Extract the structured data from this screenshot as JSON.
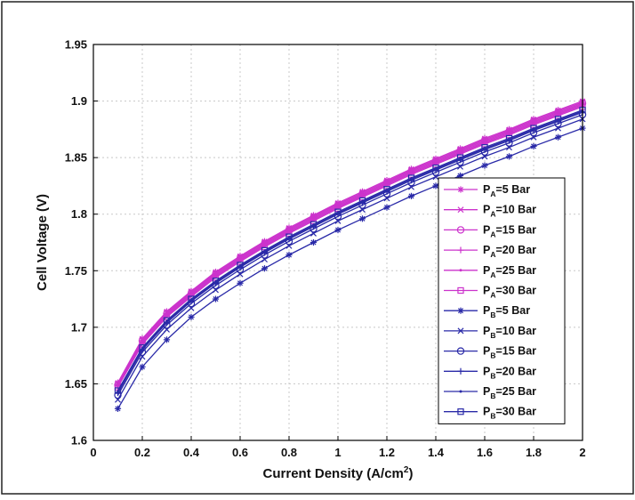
{
  "chart_data": {
    "type": "line",
    "xlabel": "Current Density (A/cm",
    "xlabel_sup": "2",
    "xlabel_tail": ")",
    "ylabel": "Cell Voltage (V)",
    "xlim": [
      0,
      2
    ],
    "ylim": [
      1.6,
      1.95
    ],
    "xticks": [
      0,
      0.2,
      0.4,
      0.6,
      0.8,
      1,
      1.2,
      1.4,
      1.6,
      1.8,
      2
    ],
    "xtick_labels": [
      "0",
      "0.2",
      "0.4",
      "0.6",
      "0.8",
      "1",
      "1.2",
      "1.4",
      "1.6",
      "1.8",
      "2"
    ],
    "yticks": [
      1.6,
      1.65,
      1.7,
      1.75,
      1.8,
      1.85,
      1.9,
      1.95
    ],
    "ytick_labels": [
      "1.6",
      "1.65",
      "1.7",
      "1.75",
      "1.8",
      "1.85",
      "1.9",
      "1.95"
    ],
    "grid": true,
    "legend_position": "right",
    "x": [
      0.1,
      0.2,
      0.3,
      0.4,
      0.5,
      0.6,
      0.7,
      0.8,
      0.9,
      1.0,
      1.1,
      1.2,
      1.3,
      1.4,
      1.5,
      1.6,
      1.7,
      1.8,
      1.9,
      2.0
    ],
    "series": [
      {
        "label_main": "P",
        "label_sub": "A",
        "label_tail": "=5 Bar",
        "color": "#cc33cc",
        "marker": "asterisk",
        "values": [
          1.651,
          1.69,
          1.714,
          1.732,
          1.749,
          1.763,
          1.776,
          1.788,
          1.799,
          1.81,
          1.82,
          1.83,
          1.84,
          1.849,
          1.858,
          1.867,
          1.875,
          1.884,
          1.892,
          1.9
        ]
      },
      {
        "label_main": "P",
        "label_sub": "A",
        "label_tail": "=10 Bar",
        "color": "#cc33cc",
        "marker": "x",
        "values": [
          1.65,
          1.689,
          1.713,
          1.731,
          1.748,
          1.762,
          1.775,
          1.787,
          1.798,
          1.809,
          1.819,
          1.829,
          1.839,
          1.848,
          1.857,
          1.866,
          1.874,
          1.883,
          1.891,
          1.899
        ]
      },
      {
        "label_main": "P",
        "label_sub": "A",
        "label_tail": "=15 Bar",
        "color": "#cc33cc",
        "marker": "circle",
        "values": [
          1.649,
          1.688,
          1.712,
          1.73,
          1.747,
          1.761,
          1.774,
          1.786,
          1.797,
          1.808,
          1.818,
          1.828,
          1.838,
          1.847,
          1.856,
          1.865,
          1.873,
          1.882,
          1.89,
          1.898
        ]
      },
      {
        "label_main": "P",
        "label_sub": "A",
        "label_tail": "=20 Bar",
        "color": "#cc33cc",
        "marker": "plus",
        "values": [
          1.648,
          1.687,
          1.711,
          1.729,
          1.746,
          1.76,
          1.773,
          1.785,
          1.796,
          1.807,
          1.817,
          1.827,
          1.837,
          1.846,
          1.855,
          1.864,
          1.872,
          1.881,
          1.889,
          1.897
        ]
      },
      {
        "label_main": "P",
        "label_sub": "A",
        "label_tail": "=25 Bar",
        "color": "#cc33cc",
        "marker": "dot",
        "values": [
          1.648,
          1.686,
          1.71,
          1.728,
          1.745,
          1.759,
          1.772,
          1.784,
          1.795,
          1.806,
          1.816,
          1.826,
          1.836,
          1.845,
          1.854,
          1.863,
          1.871,
          1.88,
          1.888,
          1.896
        ]
      },
      {
        "label_main": "P",
        "label_sub": "A",
        "label_tail": "=30 Bar",
        "color": "#cc33cc",
        "marker": "square",
        "values": [
          1.647,
          1.685,
          1.709,
          1.727,
          1.744,
          1.758,
          1.771,
          1.783,
          1.794,
          1.805,
          1.815,
          1.825,
          1.835,
          1.844,
          1.853,
          1.862,
          1.87,
          1.879,
          1.887,
          1.895
        ]
      },
      {
        "label_main": "P",
        "label_sub": "B",
        "label_tail": "=5 Bar",
        "color": "#2a2aa8",
        "marker": "asterisk",
        "values": [
          1.628,
          1.665,
          1.689,
          1.709,
          1.725,
          1.739,
          1.752,
          1.764,
          1.775,
          1.786,
          1.796,
          1.806,
          1.816,
          1.825,
          1.834,
          1.843,
          1.851,
          1.86,
          1.868,
          1.876
        ]
      },
      {
        "label_main": "P",
        "label_sub": "B",
        "label_tail": "=10 Bar",
        "color": "#2a2aa8",
        "marker": "x",
        "values": [
          1.636,
          1.674,
          1.698,
          1.717,
          1.733,
          1.747,
          1.76,
          1.772,
          1.783,
          1.794,
          1.804,
          1.814,
          1.824,
          1.833,
          1.842,
          1.851,
          1.859,
          1.868,
          1.876,
          1.884
        ]
      },
      {
        "label_main": "P",
        "label_sub": "B",
        "label_tail": "=15 Bar",
        "color": "#2a2aa8",
        "marker": "circle",
        "values": [
          1.64,
          1.678,
          1.702,
          1.721,
          1.737,
          1.751,
          1.764,
          1.776,
          1.787,
          1.798,
          1.808,
          1.818,
          1.828,
          1.837,
          1.846,
          1.855,
          1.863,
          1.872,
          1.88,
          1.888
        ]
      },
      {
        "label_main": "P",
        "label_sub": "B",
        "label_tail": "=20 Bar",
        "color": "#2a2aa8",
        "marker": "plus",
        "values": [
          1.642,
          1.68,
          1.704,
          1.723,
          1.739,
          1.753,
          1.766,
          1.778,
          1.789,
          1.8,
          1.81,
          1.82,
          1.83,
          1.839,
          1.848,
          1.857,
          1.865,
          1.874,
          1.882,
          1.89
        ]
      },
      {
        "label_main": "P",
        "label_sub": "B",
        "label_tail": "=25 Bar",
        "color": "#2a2aa8",
        "marker": "dot",
        "values": [
          1.643,
          1.681,
          1.705,
          1.724,
          1.74,
          1.754,
          1.767,
          1.779,
          1.79,
          1.801,
          1.811,
          1.821,
          1.831,
          1.84,
          1.849,
          1.858,
          1.866,
          1.875,
          1.883,
          1.891
        ]
      },
      {
        "label_main": "P",
        "label_sub": "B",
        "label_tail": "=30 Bar",
        "color": "#2a2aa8",
        "marker": "square",
        "values": [
          1.644,
          1.682,
          1.706,
          1.725,
          1.741,
          1.755,
          1.768,
          1.78,
          1.791,
          1.802,
          1.812,
          1.822,
          1.832,
          1.841,
          1.85,
          1.859,
          1.867,
          1.876,
          1.884,
          1.892
        ]
      }
    ]
  }
}
